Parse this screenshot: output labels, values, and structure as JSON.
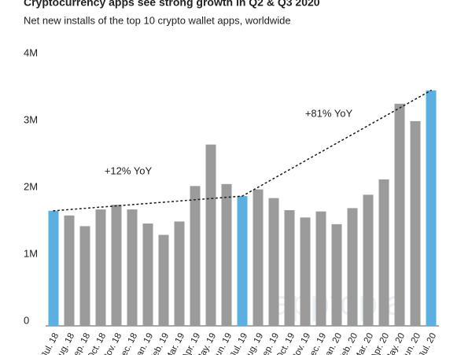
{
  "chart_data": {
    "type": "bar",
    "title": "Cryptocurrency apps see strong growth in Q2 & Q3 2020",
    "subtitle": "Net new installs of the top 10 crypto wallet apps, worldwide",
    "categories": [
      "Jul. 18",
      "Aug. 18",
      "Sep. 18",
      "Oct. 18",
      "Nov. 18",
      "Dec. 18",
      "Jan. 19",
      "Feb. 19",
      "Mar. 19",
      "Apr. 19",
      "May. 19",
      "Jun. 19",
      "Jul. 19",
      "Aug. 19",
      "Sep. 19",
      "Oct. 19",
      "Nov. 19",
      "Dec. 19",
      "Jan. 20",
      "Feb. 20",
      "Mar. 20",
      "Apr. 20",
      "May. 20",
      "Jun. 20",
      "Jul. 20"
    ],
    "values": [
      1720000,
      1650000,
      1490000,
      1740000,
      1810000,
      1740000,
      1530000,
      1360000,
      1560000,
      2090000,
      2710000,
      2120000,
      1940000,
      2040000,
      1910000,
      1730000,
      1620000,
      1710000,
      1520000,
      1760000,
      1960000,
      2190000,
      3320000,
      3060000,
      3520000
    ],
    "colors": [
      "#5ab0e2",
      "#9b9b9b",
      "#9b9b9b",
      "#9b9b9b",
      "#9b9b9b",
      "#9b9b9b",
      "#9b9b9b",
      "#9b9b9b",
      "#9b9b9b",
      "#9b9b9b",
      "#9b9b9b",
      "#9b9b9b",
      "#5ab0e2",
      "#9b9b9b",
      "#9b9b9b",
      "#9b9b9b",
      "#9b9b9b",
      "#9b9b9b",
      "#9b9b9b",
      "#9b9b9b",
      "#9b9b9b",
      "#9b9b9b",
      "#9b9b9b",
      "#9b9b9b",
      "#5ab0e2"
    ],
    "ylim": [
      0,
      4000000
    ],
    "yticks": [
      0,
      {
        "value": 1000000,
        "label": "1M"
      },
      {
        "value": 2000000,
        "label": "2M"
      },
      {
        "value": 3000000,
        "label": "3M"
      },
      {
        "value": 4000000,
        "label": "4M"
      }
    ],
    "grid": false,
    "annotations": [
      "+12% YoY",
      "+81% YoY"
    ],
    "watermark": "apptopia"
  }
}
